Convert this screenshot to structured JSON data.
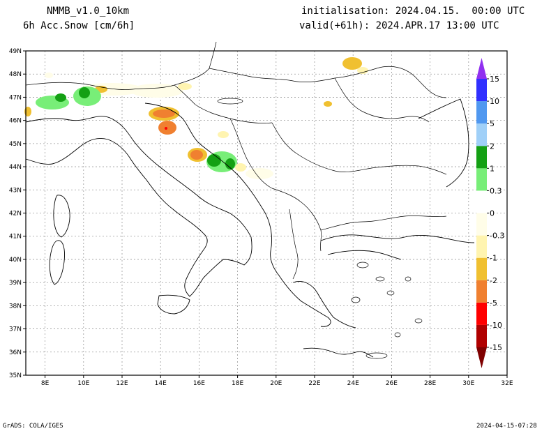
{
  "header": {
    "model": "NMMB_v1.0_10km",
    "variable": "6h Acc.Snow [cm/6h]",
    "init": "initialisation: 2024.04.15.  00:00 UTC",
    "valid": "valid(+61h): 2024.APR.17 13:00 UTC"
  },
  "footer": {
    "credit": "GrADS: COLA/IGES",
    "timestamp": "2024-04-15-07:28"
  },
  "map": {
    "lat_labels": [
      "49N",
      "48N",
      "47N",
      "46N",
      "45N",
      "44N",
      "43N",
      "42N",
      "41N",
      "40N",
      "39N",
      "38N",
      "37N",
      "36N",
      "35N"
    ],
    "lon_labels": [
      "8E",
      "10E",
      "12E",
      "14E",
      "16E",
      "18E",
      "20E",
      "22E",
      "24E",
      "26E",
      "28E",
      "30E",
      "32E"
    ]
  },
  "colorbar": {
    "colors": [
      "#7f0000",
      "#b00000",
      "#ff0000",
      "#f08030",
      "#f0c030",
      "#fff4b0",
      "#fffde8",
      "#ffffff",
      "#78ee78",
      "#14a014",
      "#a0d0f8",
      "#5098f0",
      "#3030ff",
      "#9030f0"
    ],
    "labels": [
      "-15",
      "-10",
      "-5",
      "-2",
      "-1",
      "-0.3",
      "0",
      "0.3",
      "1",
      "2",
      "5",
      "10",
      "15"
    ]
  }
}
